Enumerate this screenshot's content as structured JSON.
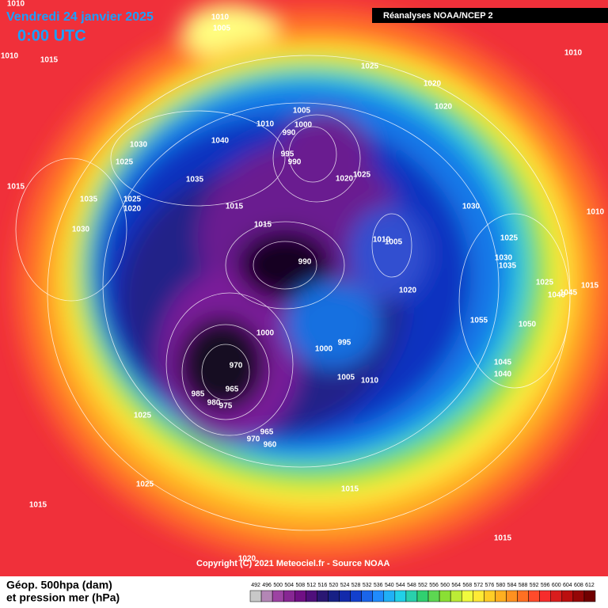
{
  "header": {
    "date": "Vendredi 24 janvier 2025",
    "time": "0:00 UTC",
    "source": "Réanalyses NOAA/NCEP 2"
  },
  "isobar_labels": [
    1010,
    1010,
    1005,
    1010,
    1015,
    1025,
    1020,
    1010,
    1005,
    1020,
    1010,
    1000,
    990,
    1030,
    1040,
    995,
    990,
    1025,
    1020,
    1025,
    1035,
    1015,
    1035,
    1025,
    1020,
    1015,
    1030,
    1010,
    1015,
    1030,
    1010,
    1005,
    1025,
    990,
    1030,
    1035,
    1025,
    1015,
    1020,
    1045,
    1040,
    1055,
    1050,
    1000,
    995,
    1000,
    970,
    1045,
    1040,
    1005,
    1010,
    965,
    985,
    980,
    975,
    1025,
    965,
    970,
    960,
    1025,
    1015,
    1015,
    1015,
    1020
  ],
  "footer": {
    "copyright": "Copyright (C) 2021 Meteociel.fr - Source NOAA",
    "legend_title": [
      "Géop. 500hpa (dam)",
      "et pression mer (hPa)"
    ]
  },
  "scale": [
    492,
    496,
    500,
    504,
    508,
    512,
    516,
    520,
    524,
    528,
    532,
    536,
    540,
    544,
    548,
    552,
    556,
    560,
    564,
    568,
    572,
    576,
    580,
    584,
    588,
    592,
    596,
    600,
    604,
    608,
    612
  ]
}
